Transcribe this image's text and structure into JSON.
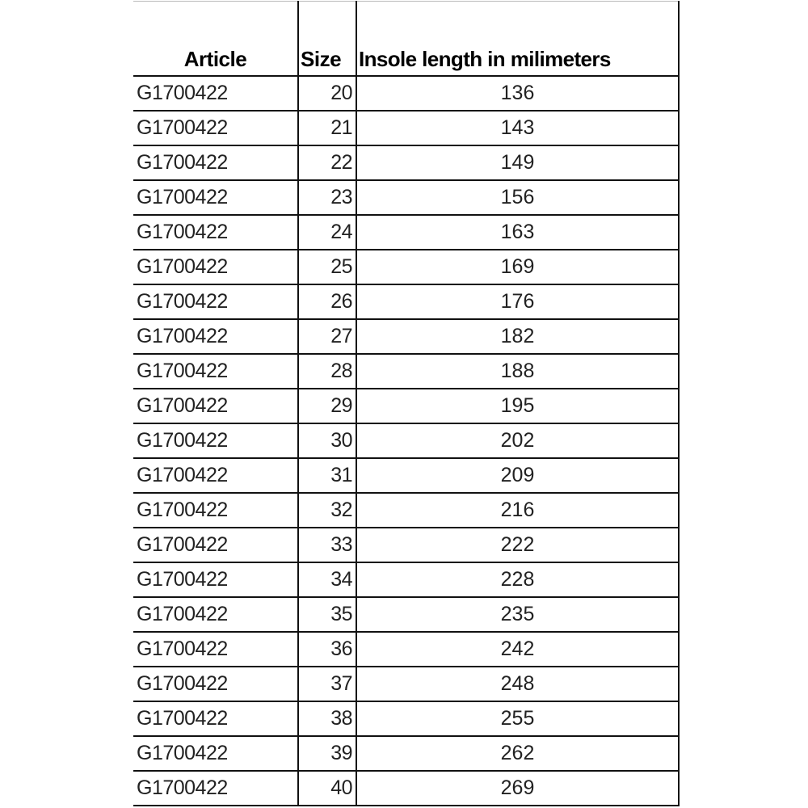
{
  "table": {
    "headers": [
      "Article",
      "Size",
      "Insole length in milimeters"
    ],
    "rows": [
      [
        "G1700422",
        "20",
        "136"
      ],
      [
        "G1700422",
        "21",
        "143"
      ],
      [
        "G1700422",
        "22",
        "149"
      ],
      [
        "G1700422",
        "23",
        "156"
      ],
      [
        "G1700422",
        "24",
        "163"
      ],
      [
        "G1700422",
        "25",
        "169"
      ],
      [
        "G1700422",
        "26",
        "176"
      ],
      [
        "G1700422",
        "27",
        "182"
      ],
      [
        "G1700422",
        "28",
        "188"
      ],
      [
        "G1700422",
        "29",
        "195"
      ],
      [
        "G1700422",
        "30",
        "202"
      ],
      [
        "G1700422",
        "31",
        "209"
      ],
      [
        "G1700422",
        "32",
        "216"
      ],
      [
        "G1700422",
        "33",
        "222"
      ],
      [
        "G1700422",
        "34",
        "228"
      ],
      [
        "G1700422",
        "35",
        "235"
      ],
      [
        "G1700422",
        "36",
        "242"
      ],
      [
        "G1700422",
        "37",
        "248"
      ],
      [
        "G1700422",
        "38",
        "255"
      ],
      [
        "G1700422",
        "39",
        "262"
      ],
      [
        "G1700422",
        "40",
        "269"
      ]
    ]
  }
}
